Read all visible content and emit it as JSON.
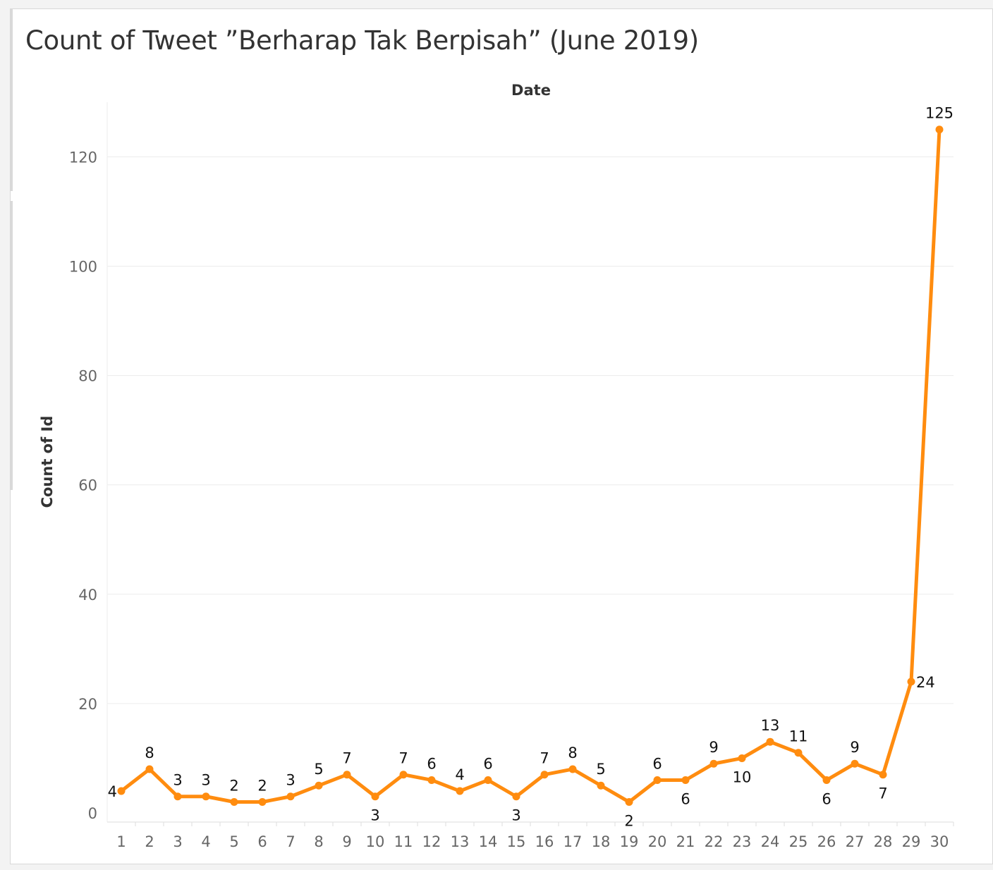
{
  "chart_data": {
    "type": "line",
    "title": "Count of Tweet ”Berharap Tak Berpisah” (June 2019)",
    "xlabel": "Date",
    "ylabel": "Count of Id",
    "x": [
      1,
      2,
      3,
      4,
      5,
      6,
      7,
      8,
      9,
      10,
      11,
      12,
      13,
      14,
      15,
      16,
      17,
      18,
      19,
      20,
      21,
      22,
      23,
      24,
      25,
      26,
      27,
      28,
      29,
      30
    ],
    "series": [
      {
        "values": [
          4,
          8,
          3,
          3,
          2,
          2,
          3,
          5,
          7,
          3,
          7,
          6,
          4,
          6,
          3,
          7,
          8,
          5,
          2,
          6,
          6,
          9,
          10,
          13,
          11,
          6,
          9,
          7,
          24,
          125
        ]
      }
    ],
    "label_placement": [
      "left",
      "above",
      "above",
      "above",
      "above",
      "above",
      "above",
      "above",
      "above",
      "below",
      "above",
      "above",
      "above",
      "above",
      "below",
      "above",
      "above",
      "above",
      "below",
      "above",
      "below",
      "above",
      "below",
      "above",
      "above",
      "below",
      "above",
      "below",
      "right",
      "above"
    ],
    "ylim": [
      0,
      130
    ],
    "yticks": [
      0,
      20,
      40,
      60,
      80,
      100,
      120
    ],
    "xticks": [
      "1",
      "2",
      "3",
      "4",
      "5",
      "6",
      "7",
      "8",
      "9",
      "10",
      "11",
      "12",
      "13",
      "14",
      "15",
      "16",
      "17",
      "18",
      "19",
      "20",
      "21",
      "22",
      "23",
      "24",
      "25",
      "26",
      "27",
      "28",
      "29",
      "30"
    ],
    "grid": true,
    "line_color": "#ff8c0f"
  }
}
